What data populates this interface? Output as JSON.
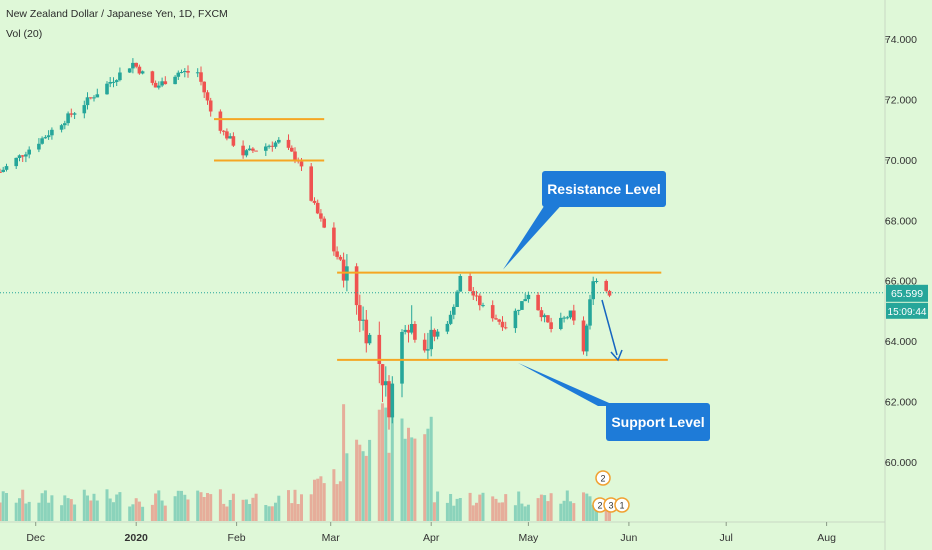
{
  "header": {
    "symbol_title": "New Zealand Dollar / Japanese Yen, 1D, FXCM",
    "volume_label": "Vol (20)"
  },
  "colors": {
    "background": "#dff8d8",
    "up_candle": "#26a69a",
    "down_candle": "#ef5350",
    "level_line": "#f5a623",
    "callout": "#1e7bd8",
    "price_label_bg": "#26a69a",
    "arrow": "#1565c0"
  },
  "chart_data": {
    "type": "candlestick",
    "title": "New Zealand Dollar / Japanese Yen, 1D, FXCM",
    "y_axis": {
      "ticks": [
        "60.000",
        "62.000",
        "64.000",
        "66.000",
        "68.000",
        "70.000",
        "72.000",
        "74.000"
      ],
      "tick_values": [
        60,
        62,
        64,
        66,
        68,
        70,
        72,
        74
      ],
      "range": [
        57.9,
        76.0
      ]
    },
    "x_axis": {
      "labels": [
        "Dec",
        "2020",
        "Feb",
        "Mar",
        "Apr",
        "May",
        "Jun",
        "Jul",
        "Aug"
      ],
      "label_dates": [
        "2019-12-01",
        "2020-01-01",
        "2020-02-01",
        "2020-03-01",
        "2020-04-01",
        "2020-05-01",
        "2020-06-01",
        "2020-07-01",
        "2020-08-01"
      ],
      "range": [
        "2019-11-20",
        "2020-08-19"
      ]
    },
    "current_price": {
      "value": 65.599,
      "label": "65.599",
      "countdown": "15:09:44"
    },
    "price_path": [
      {
        "date": "2019-11-20",
        "close": 69.6
      },
      {
        "date": "2019-12-03",
        "close": 70.7
      },
      {
        "date": "2019-12-13",
        "close": 71.6
      },
      {
        "date": "2019-12-23",
        "close": 72.5
      },
      {
        "date": "2019-12-31",
        "close": 73.2
      },
      {
        "date": "2020-01-07",
        "close": 72.4
      },
      {
        "date": "2020-01-14",
        "close": 72.9
      },
      {
        "date": "2020-01-20",
        "close": 72.9
      },
      {
        "date": "2020-01-24",
        "close": 71.6
      },
      {
        "date": "2020-01-28",
        "close": 70.9
      },
      {
        "date": "2020-02-03",
        "close": 70.2
      },
      {
        "date": "2020-02-14",
        "close": 70.6
      },
      {
        "date": "2020-02-20",
        "close": 70.0
      },
      {
        "date": "2020-02-24",
        "close": 68.7
      },
      {
        "date": "2020-03-02",
        "close": 67.0
      },
      {
        "date": "2020-03-06",
        "close": 66.2
      },
      {
        "date": "2020-03-10",
        "close": 64.9
      },
      {
        "date": "2020-03-16",
        "close": 63.3
      },
      {
        "date": "2020-03-19",
        "close": 61.9
      },
      {
        "date": "2020-03-24",
        "close": 64.8
      },
      {
        "date": "2020-03-31",
        "close": 63.9
      },
      {
        "date": "2020-04-07",
        "close": 64.8
      },
      {
        "date": "2020-04-10",
        "close": 66.1
      },
      {
        "date": "2020-04-17",
        "close": 65.1
      },
      {
        "date": "2020-04-24",
        "close": 64.5
      },
      {
        "date": "2020-05-01",
        "close": 65.6
      },
      {
        "date": "2020-05-08",
        "close": 64.4
      },
      {
        "date": "2020-05-14",
        "close": 64.9
      },
      {
        "date": "2020-05-18",
        "close": 63.7
      },
      {
        "date": "2020-05-21",
        "close": 66.1
      },
      {
        "date": "2020-05-26",
        "close": 65.6
      }
    ],
    "levels": [
      {
        "name": "Jan/Feb range top",
        "value": 71.35,
        "from": "2020-01-25",
        "to": "2020-02-28"
      },
      {
        "name": "Jan/Feb range bottom",
        "value": 69.98,
        "from": "2020-01-25",
        "to": "2020-02-28"
      },
      {
        "name": "Resistance",
        "value": 66.27,
        "from": "2020-03-03",
        "to": "2020-06-11"
      },
      {
        "name": "Support",
        "value": 63.38,
        "from": "2020-03-03",
        "to": "2020-06-13"
      }
    ],
    "annotations": [
      {
        "text": "Resistance Level",
        "points_to": "Resistance"
      },
      {
        "text": "Support Level",
        "points_to": "Support"
      }
    ],
    "event_markers": [
      "2",
      "2",
      "3",
      "1"
    ],
    "grid": false
  }
}
